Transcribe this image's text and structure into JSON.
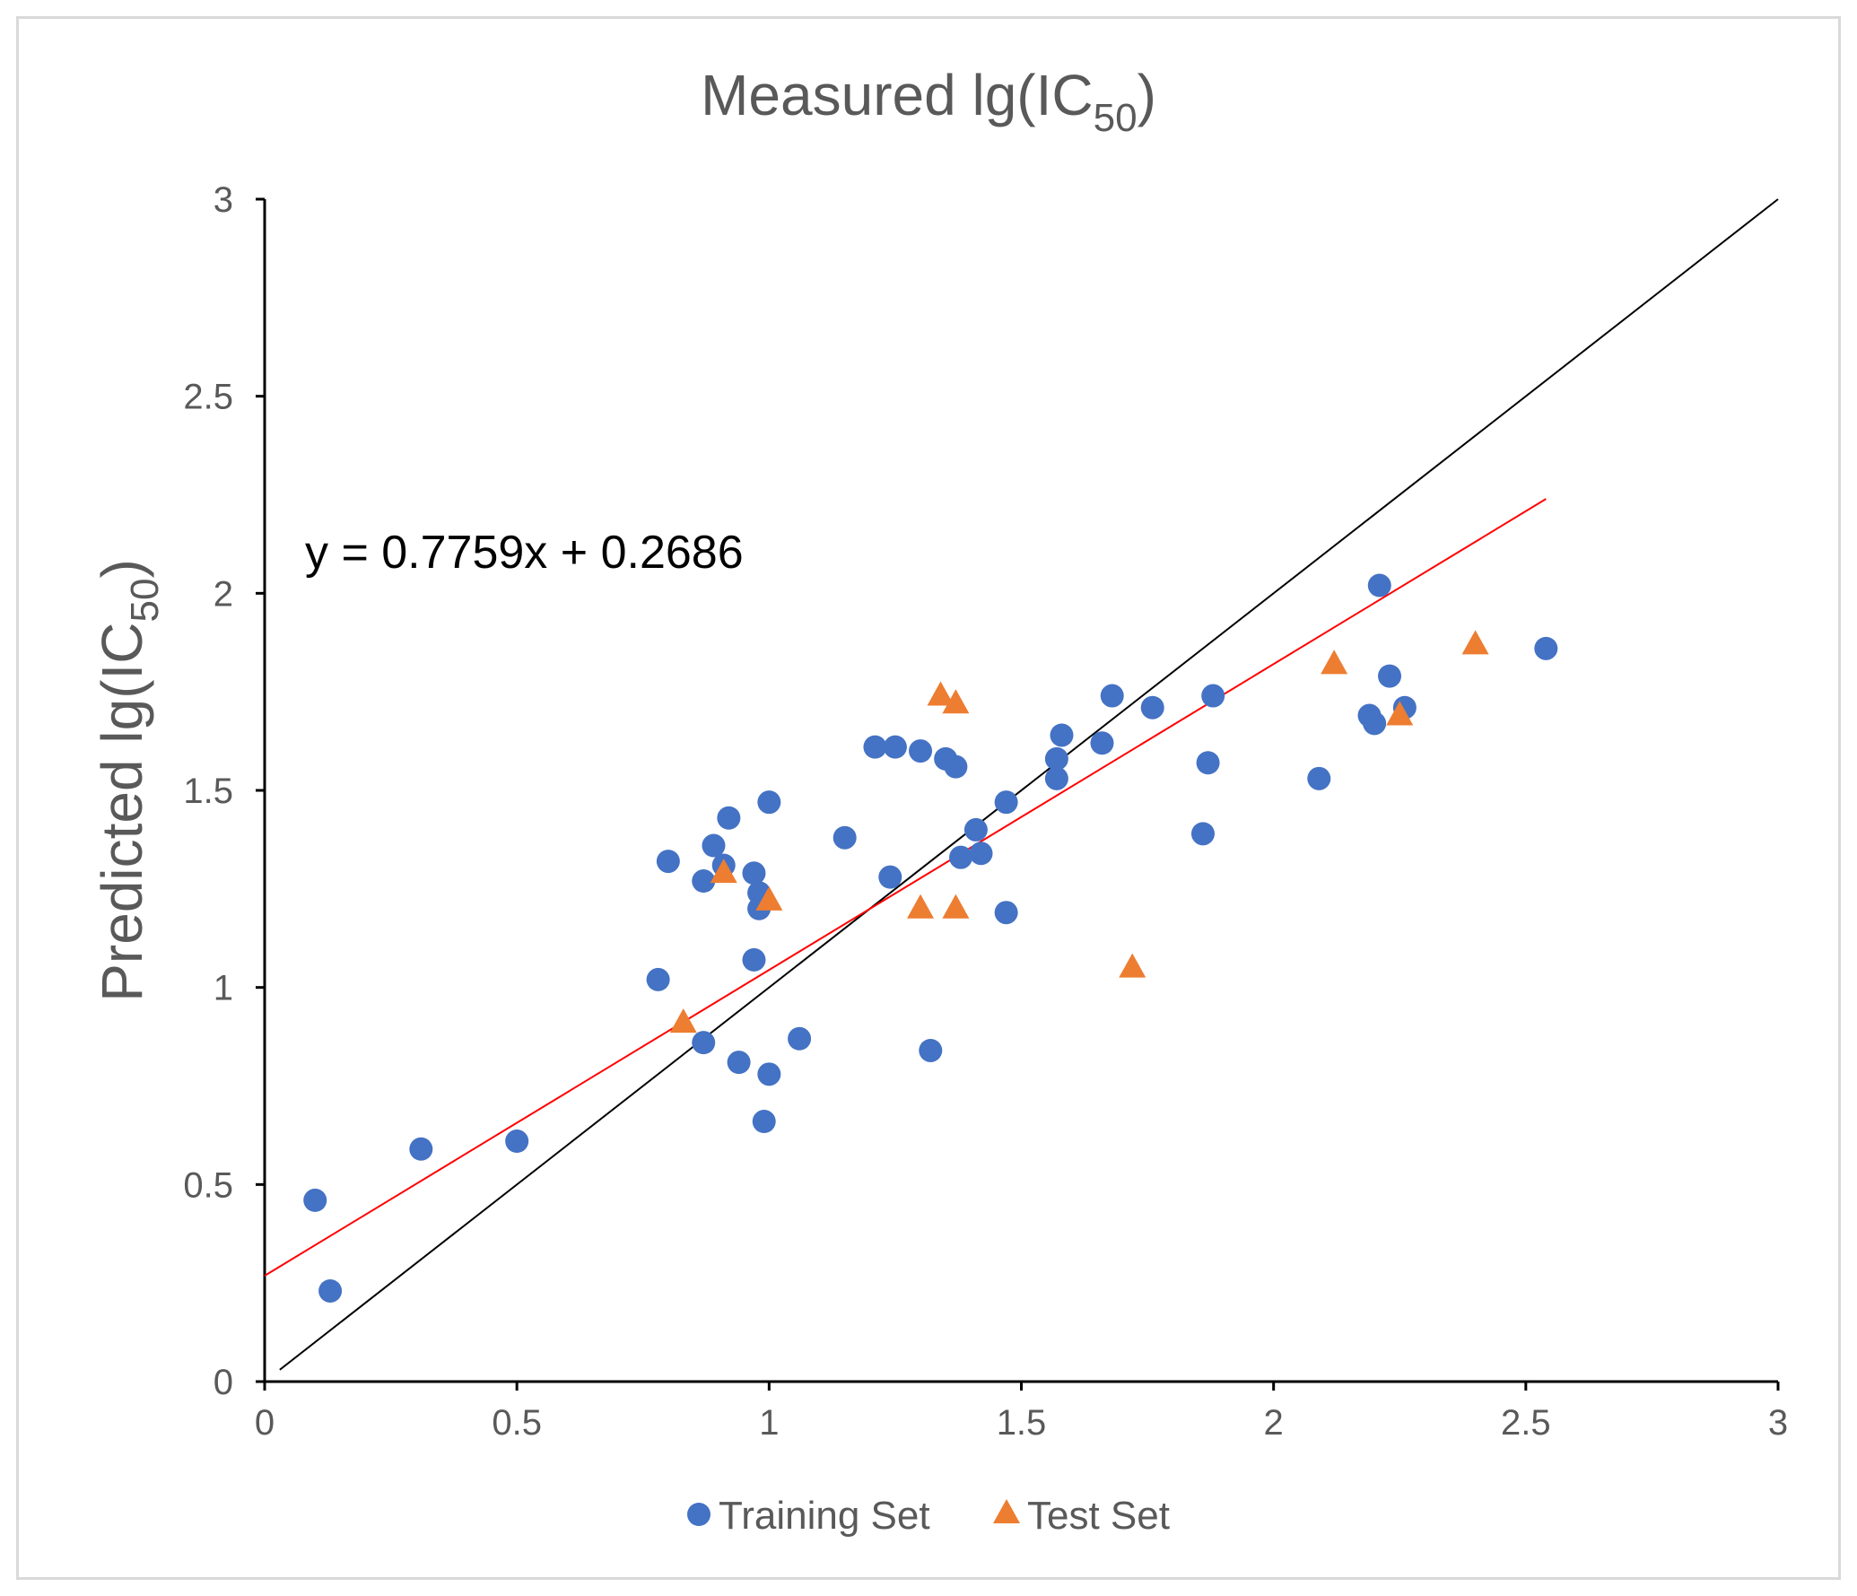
{
  "chart_data": {
    "type": "scatter",
    "title_main": "Measured lg(IC",
    "title_sub": "50",
    "title_close": ")",
    "ylabel_main": "Predicted lg(IC",
    "ylabel_sub": "50",
    "ylabel_close": ")",
    "equation": "y = 0.7759x + 0.2686",
    "xlim": [
      0,
      3
    ],
    "ylim": [
      0,
      3
    ],
    "x_ticks": [
      "0",
      "0.5",
      "1",
      "1.5",
      "2",
      "2.5",
      "3"
    ],
    "y_ticks": [
      "0",
      "0.5",
      "1",
      "1.5",
      "2",
      "2.5",
      "3"
    ],
    "regression": {
      "slope": 0.7759,
      "intercept": 0.2686,
      "x_range": [
        0,
        2.54
      ],
      "color": "#ff0000"
    },
    "identity_line": {
      "x_range": [
        0.03,
        3.0
      ],
      "color": "#000000"
    },
    "legend": {
      "position": "bottom",
      "items": [
        "Training Set",
        "Test Set"
      ]
    },
    "series": [
      {
        "name": "Training Set",
        "marker": "circle",
        "color": "#4472c4",
        "points": [
          [
            0.1,
            0.46
          ],
          [
            0.13,
            0.23
          ],
          [
            0.31,
            0.59
          ],
          [
            0.5,
            0.61
          ],
          [
            0.78,
            1.02
          ],
          [
            0.8,
            1.32
          ],
          [
            0.87,
            1.27
          ],
          [
            0.89,
            1.36
          ],
          [
            0.91,
            1.31
          ],
          [
            0.92,
            1.43
          ],
          [
            0.87,
            0.86
          ],
          [
            0.94,
            0.81
          ],
          [
            0.97,
            1.29
          ],
          [
            0.98,
            1.24
          ],
          [
            0.98,
            1.2
          ],
          [
            0.97,
            1.07
          ],
          [
            1.0,
            1.47
          ],
          [
            1.0,
            0.78
          ],
          [
            0.99,
            0.66
          ],
          [
            1.06,
            0.87
          ],
          [
            1.15,
            1.38
          ],
          [
            1.21,
            1.61
          ],
          [
            1.25,
            1.61
          ],
          [
            1.3,
            1.6
          ],
          [
            1.24,
            1.28
          ],
          [
            1.32,
            0.84
          ],
          [
            1.35,
            1.58
          ],
          [
            1.37,
            1.56
          ],
          [
            1.38,
            1.33
          ],
          [
            1.41,
            1.4
          ],
          [
            1.42,
            1.34
          ],
          [
            1.47,
            1.47
          ],
          [
            1.47,
            1.19
          ],
          [
            1.57,
            1.58
          ],
          [
            1.57,
            1.53
          ],
          [
            1.58,
            1.64
          ],
          [
            1.66,
            1.62
          ],
          [
            1.68,
            1.74
          ],
          [
            1.76,
            1.71
          ],
          [
            1.86,
            1.39
          ],
          [
            1.87,
            1.57
          ],
          [
            1.88,
            1.74
          ],
          [
            2.09,
            1.53
          ],
          [
            2.19,
            1.69
          ],
          [
            2.2,
            1.67
          ],
          [
            2.21,
            2.02
          ],
          [
            2.23,
            1.79
          ],
          [
            2.26,
            1.71
          ],
          [
            2.54,
            1.86
          ]
        ]
      },
      {
        "name": "Test Set",
        "marker": "triangle",
        "color": "#ed7d31",
        "points": [
          [
            0.83,
            0.91
          ],
          [
            0.91,
            1.29
          ],
          [
            1.0,
            1.22
          ],
          [
            1.3,
            1.2
          ],
          [
            1.34,
            1.74
          ],
          [
            1.37,
            1.72
          ],
          [
            1.37,
            1.2
          ],
          [
            1.72,
            1.05
          ],
          [
            2.12,
            1.82
          ],
          [
            2.25,
            1.69
          ],
          [
            2.4,
            1.87
          ]
        ]
      }
    ]
  }
}
